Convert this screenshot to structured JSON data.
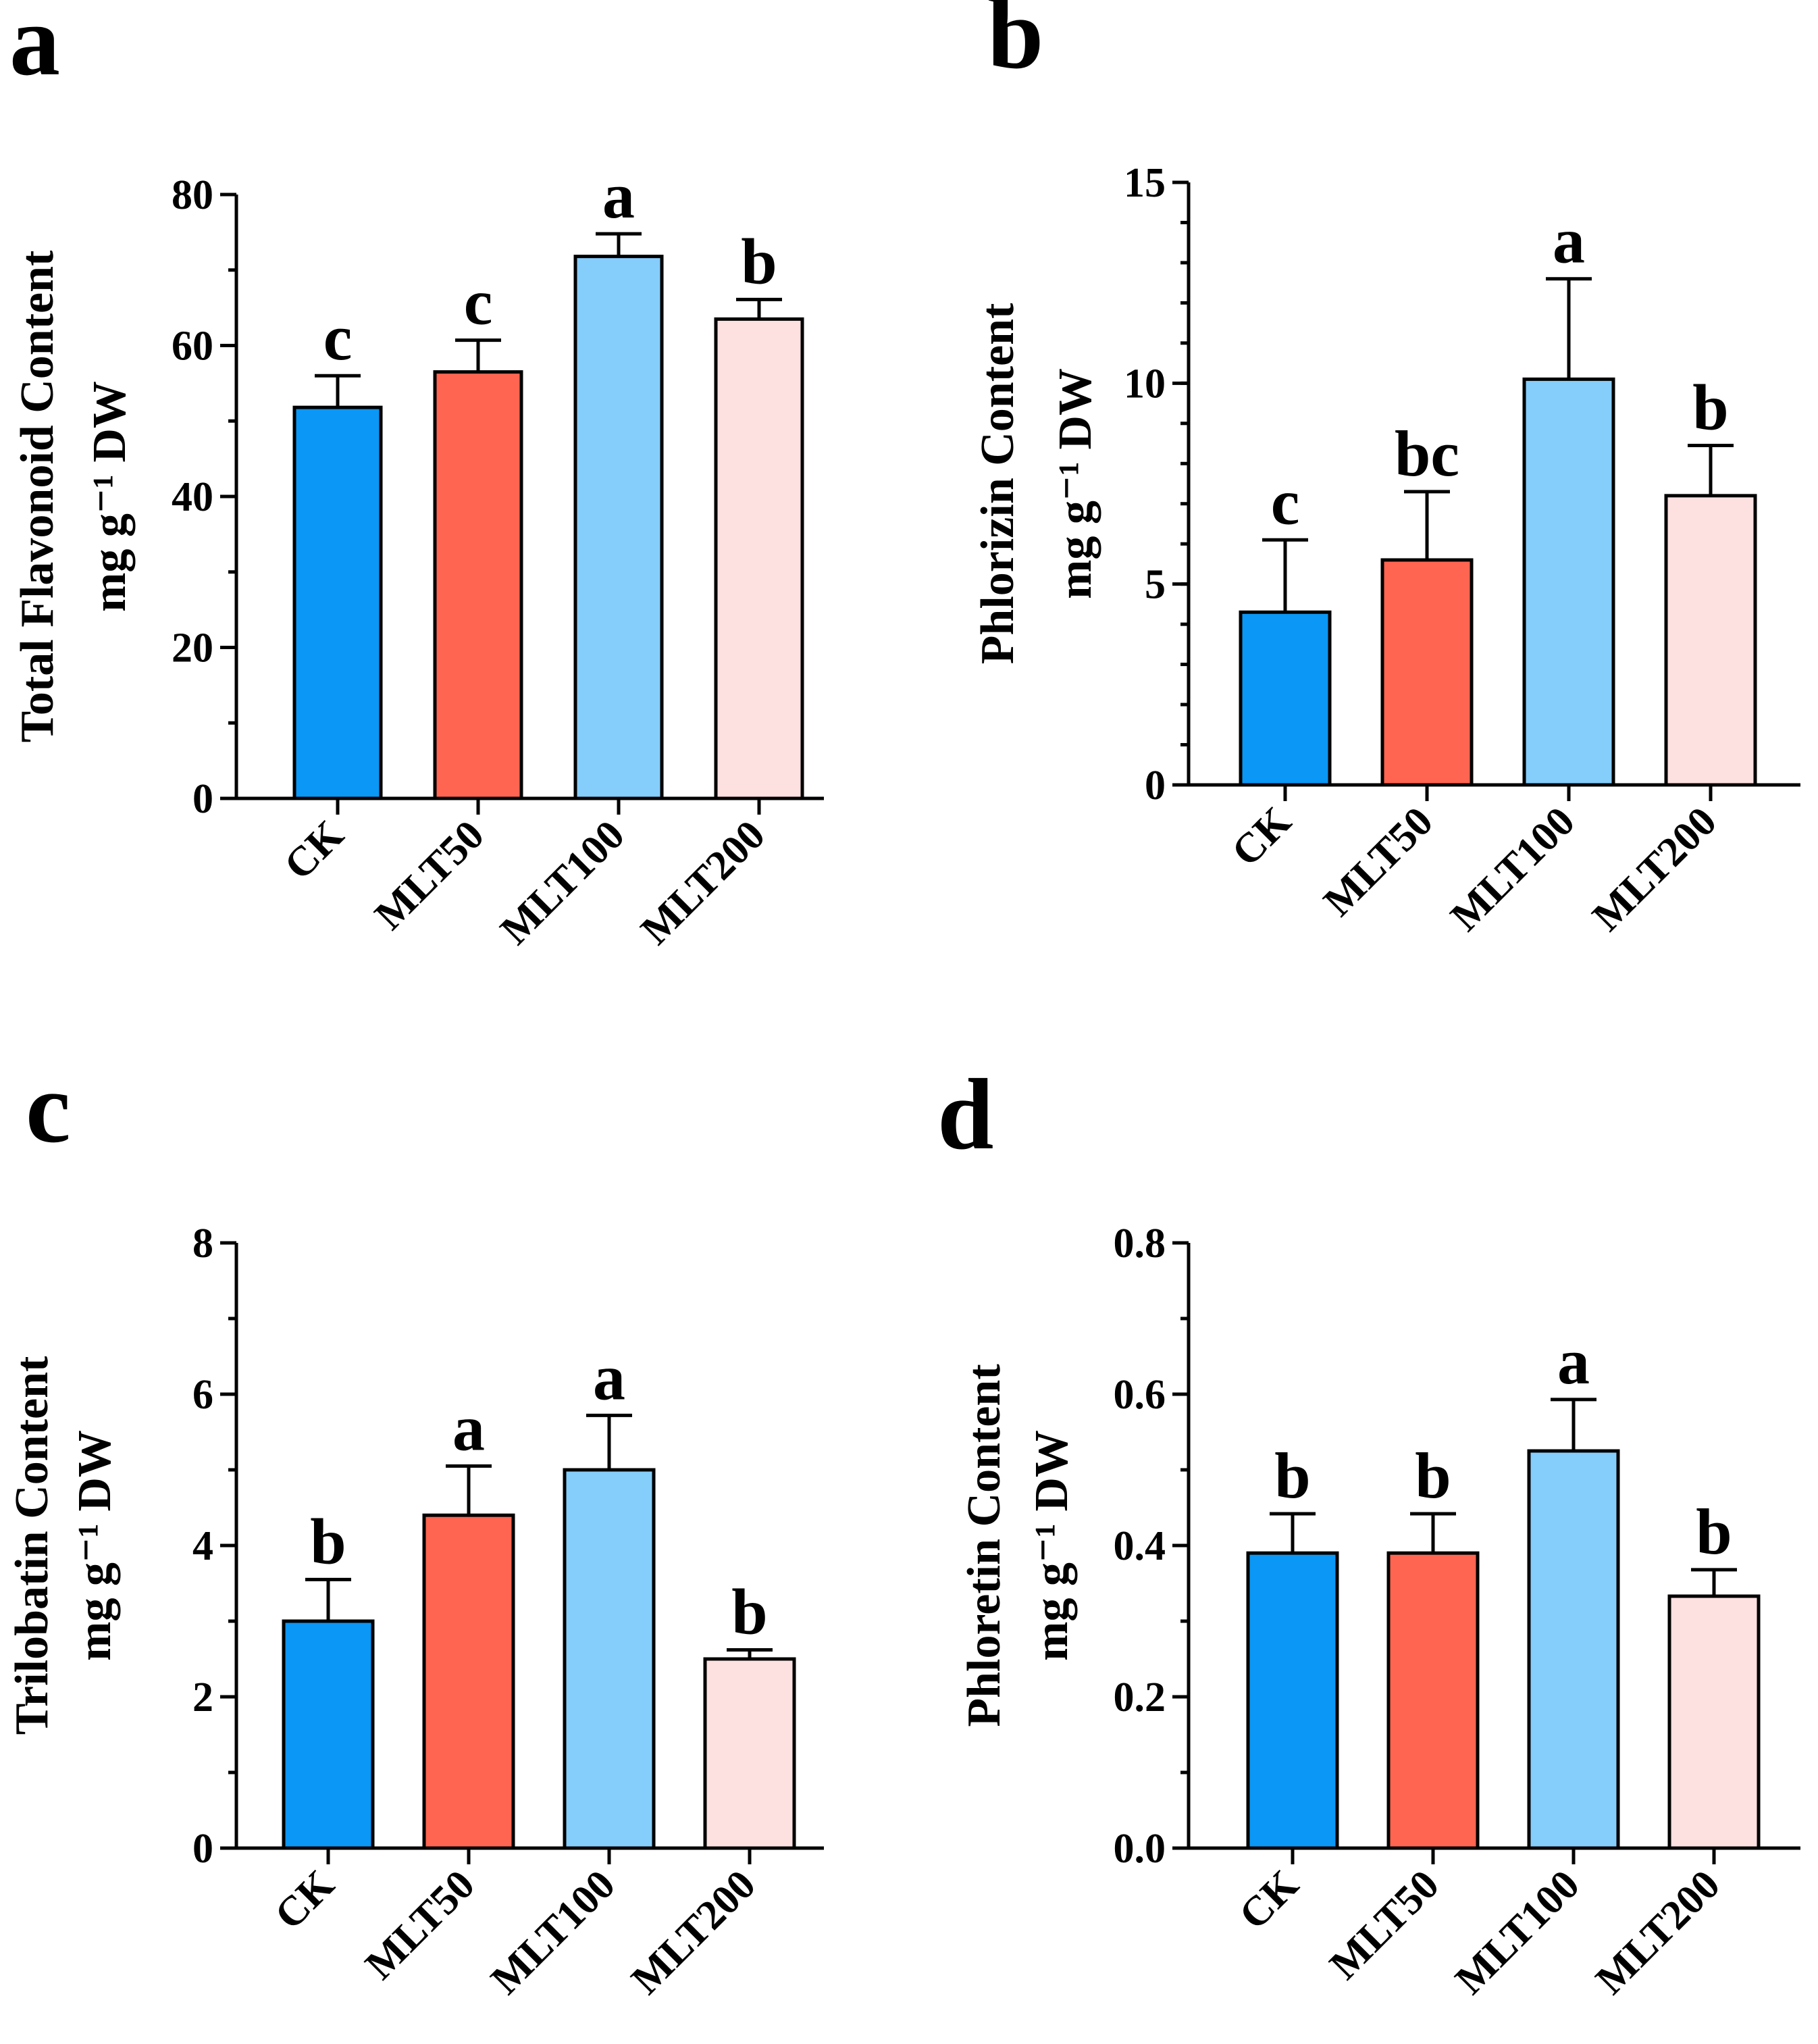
{
  "colors": {
    "CK": "#0a97f5",
    "MLT50": "#ff6550",
    "MLT100": "#85cdfb",
    "MLT200": "#fde0e0"
  },
  "chart_data": [
    {
      "type": "bar",
      "panel": "a",
      "ylabel_line1": "Total Flavonoid Content",
      "ylabel_line2": "mg g⁻¹ DW",
      "ylim": [
        0,
        80
      ],
      "yticks": [
        0,
        20,
        40,
        60,
        80
      ],
      "ytick_labels": [
        "0",
        "20",
        "40",
        "60",
        "80"
      ],
      "minor_step": 10,
      "categories": [
        "CK",
        "MLT50",
        "MLT100",
        "MLT200"
      ],
      "values": [
        51.8,
        56.5,
        71.8,
        63.5
      ],
      "errors": [
        4.2,
        4.2,
        3.0,
        2.6
      ],
      "letters": [
        "c",
        "c",
        "a",
        "b"
      ]
    },
    {
      "type": "bar",
      "panel": "b",
      "ylabel_line1": "Phlorizin Content",
      "ylabel_line2": "mg g⁻¹ DW",
      "ylim": [
        0,
        15
      ],
      "yticks": [
        0,
        5,
        10,
        15
      ],
      "ytick_labels": [
        "0",
        "5",
        "10",
        "15"
      ],
      "minor_step": 1,
      "categories": [
        "CK",
        "MLT50",
        "MLT100",
        "MLT200"
      ],
      "values": [
        4.3,
        5.6,
        10.1,
        7.2
      ],
      "errors": [
        1.8,
        1.7,
        2.5,
        1.25
      ],
      "letters": [
        "c",
        "bc",
        "a",
        "b"
      ]
    },
    {
      "type": "bar",
      "panel": "c",
      "ylabel_line1": "Trilobatin Content",
      "ylabel_line2": "mg g⁻¹ DW",
      "ylim": [
        0,
        8
      ],
      "yticks": [
        0,
        2,
        4,
        6,
        8
      ],
      "ytick_labels": [
        "0",
        "2",
        "4",
        "6",
        "8"
      ],
      "minor_step": 1,
      "categories": [
        "CK",
        "MLT50",
        "MLT100",
        "MLT200"
      ],
      "values": [
        3.0,
        4.4,
        5.0,
        2.5
      ],
      "errors": [
        0.55,
        0.65,
        0.72,
        0.12
      ],
      "letters": [
        "b",
        "a",
        "a",
        "b"
      ]
    },
    {
      "type": "bar",
      "panel": "d",
      "ylabel_line1": "Phloretin Content",
      "ylabel_line2": "mg g⁻¹ DW",
      "ylim": [
        0,
        0.8
      ],
      "yticks": [
        0,
        0.2,
        0.4,
        0.6,
        0.8
      ],
      "ytick_labels": [
        "0.0",
        "0.2",
        "0.4",
        "0.6",
        "0.8"
      ],
      "minor_step": 0.1,
      "categories": [
        "CK",
        "MLT50",
        "MLT100",
        "MLT200"
      ],
      "values": [
        0.39,
        0.39,
        0.525,
        0.333
      ],
      "errors": [
        0.052,
        0.052,
        0.068,
        0.035
      ],
      "letters": [
        "b",
        "b",
        "a",
        "b"
      ]
    }
  ]
}
